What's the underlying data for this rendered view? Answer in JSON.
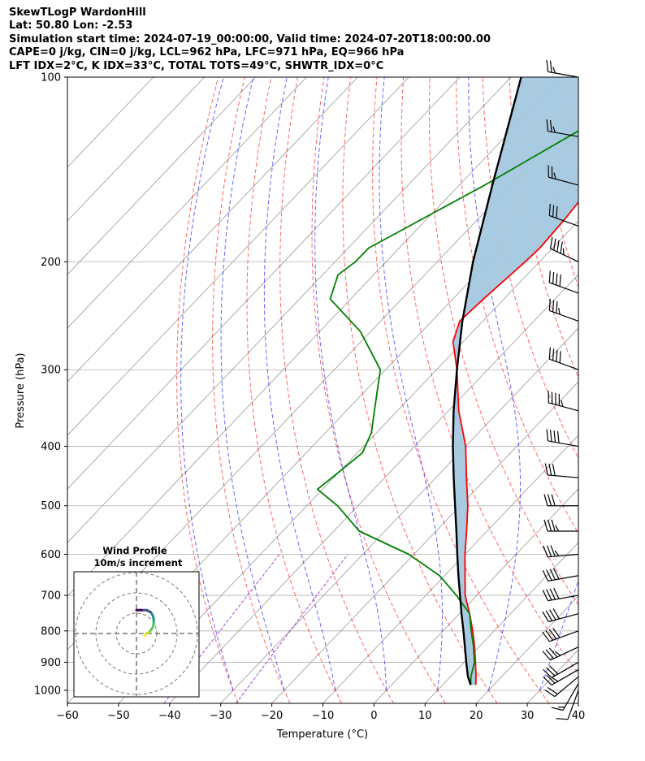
{
  "header": {
    "line1": "SkewTLogP WardonHill",
    "line2": "Lat: 50.80   Lon: -2.53",
    "line3": "Simulation start time: 2024-07-19_00:00:00, Valid time: 2024-07-20T18:00:00.00",
    "line4": "CAPE=0 j/kg, CIN=0 j/kg, LCL=962 hPa, LFC=971 hPa, EQ=966 hPa",
    "line5": "LFT IDX=2°C, K IDX=33°C, TOTAL TOTS=49°C, SHWTR_IDX=0°C"
  },
  "chart_data": {
    "type": "line",
    "subtype": "skew-T log-P diagram",
    "xlabel": "Temperature (°C)",
    "ylabel": "Pressure (hPa)",
    "xlim": [
      -60,
      40
    ],
    "ylim": [
      1050,
      100
    ],
    "y_scale": "log",
    "x_ticks": [
      "−60",
      "−50",
      "−40",
      "−30",
      "−20",
      "−10",
      "0",
      "10",
      "20",
      "30",
      "40"
    ],
    "y_ticks": [
      "100",
      "200",
      "300",
      "400",
      "500",
      "600",
      "700",
      "800",
      "900",
      "1000"
    ],
    "grid": true,
    "series": [
      {
        "name": "temperature",
        "color": "#ff0000",
        "points": [
          [
            100,
            -56
          ],
          [
            110,
            -55.5
          ],
          [
            130,
            -54.5
          ],
          [
            150,
            -54
          ],
          [
            170,
            -53
          ],
          [
            190,
            -52.5
          ],
          [
            200,
            -52.8
          ],
          [
            230,
            -54
          ],
          [
            250,
            -54.5
          ],
          [
            270,
            -52
          ],
          [
            300,
            -46
          ],
          [
            350,
            -38
          ],
          [
            400,
            -30
          ],
          [
            450,
            -24
          ],
          [
            500,
            -18.5
          ],
          [
            550,
            -14
          ],
          [
            600,
            -10
          ],
          [
            650,
            -6
          ],
          [
            700,
            -2.3
          ],
          [
            750,
            2
          ],
          [
            800,
            5.8
          ],
          [
            850,
            9.2
          ],
          [
            900,
            12.2
          ],
          [
            950,
            15
          ],
          [
            980,
            16.5
          ]
        ]
      },
      {
        "name": "dewpoint",
        "color": "#008000",
        "points": [
          [
            100,
            -62
          ],
          [
            120,
            -66
          ],
          [
            150,
            -75
          ],
          [
            190,
            -86
          ],
          [
            200,
            -86
          ],
          [
            210,
            -87
          ],
          [
            230,
            -84
          ],
          [
            260,
            -72
          ],
          [
            300,
            -61
          ],
          [
            350,
            -54.5
          ],
          [
            380,
            -51
          ],
          [
            410,
            -49
          ],
          [
            440,
            -50
          ],
          [
            470,
            -51
          ],
          [
            500,
            -44
          ],
          [
            550,
            -35
          ],
          [
            600,
            -21
          ],
          [
            650,
            -11
          ],
          [
            700,
            -4
          ],
          [
            750,
            2
          ],
          [
            800,
            5.5
          ],
          [
            850,
            9
          ],
          [
            900,
            12
          ],
          [
            950,
            14
          ],
          [
            980,
            15.5
          ]
        ]
      },
      {
        "name": "parcel",
        "color": "#000000",
        "points": [
          [
            100,
            -88
          ],
          [
            150,
            -73.5
          ],
          [
            200,
            -63
          ],
          [
            250,
            -54
          ],
          [
            300,
            -46
          ],
          [
            350,
            -39
          ],
          [
            400,
            -32.5
          ],
          [
            450,
            -26.5
          ],
          [
            500,
            -21
          ],
          [
            550,
            -16
          ],
          [
            600,
            -11.5
          ],
          [
            650,
            -7.3
          ],
          [
            700,
            -3.3
          ],
          [
            750,
            0.4
          ],
          [
            800,
            4
          ],
          [
            850,
            7.3
          ],
          [
            900,
            10.4
          ],
          [
            950,
            13.4
          ],
          [
            980,
            15.5
          ]
        ]
      }
    ],
    "shaded_region": {
      "between": [
        "parcel",
        "temperature"
      ],
      "color": "#a4c8e0"
    },
    "background_lines": {
      "isotherms": {
        "color": "#999999"
      },
      "dry_adiabats": {
        "color": "#ff0000",
        "style": "dashed"
      },
      "moist_adiabats": {
        "color": "#0000ff",
        "style": "dashed"
      },
      "mixing_ratio": {
        "color": "#8000c0",
        "style": "dashed"
      }
    },
    "wind_barbs": {
      "pressure_levels": [
        1000,
        975,
        950,
        925,
        900,
        850,
        800,
        750,
        700,
        650,
        600,
        550,
        500,
        450,
        400,
        350,
        300,
        250,
        225,
        200,
        175,
        150,
        125,
        100
      ],
      "speed_kt": [
        10,
        15,
        20,
        25,
        30,
        35,
        40,
        40,
        40,
        40,
        35,
        35,
        30,
        30,
        40,
        45,
        40,
        35,
        40,
        45,
        30,
        25,
        25,
        25
      ],
      "dir_deg": [
        200,
        210,
        230,
        240,
        240,
        245,
        250,
        255,
        260,
        260,
        265,
        270,
        270,
        275,
        280,
        285,
        290,
        290,
        290,
        295,
        290,
        285,
        280,
        280
      ]
    },
    "wind_profile_inset": {
      "title": "Wind Profile",
      "subtitle": "10m/s increment",
      "hodograph_uv": [
        [
          4,
          -1
        ],
        [
          5,
          0
        ],
        [
          6,
          0.5
        ],
        [
          7,
          1.5
        ],
        [
          8,
          3
        ],
        [
          8.5,
          5
        ],
        [
          8.5,
          7
        ],
        [
          8,
          9
        ],
        [
          7,
          10.5
        ],
        [
          5,
          11.5
        ],
        [
          2.5,
          11.5
        ],
        [
          0,
          11.5
        ]
      ]
    }
  }
}
